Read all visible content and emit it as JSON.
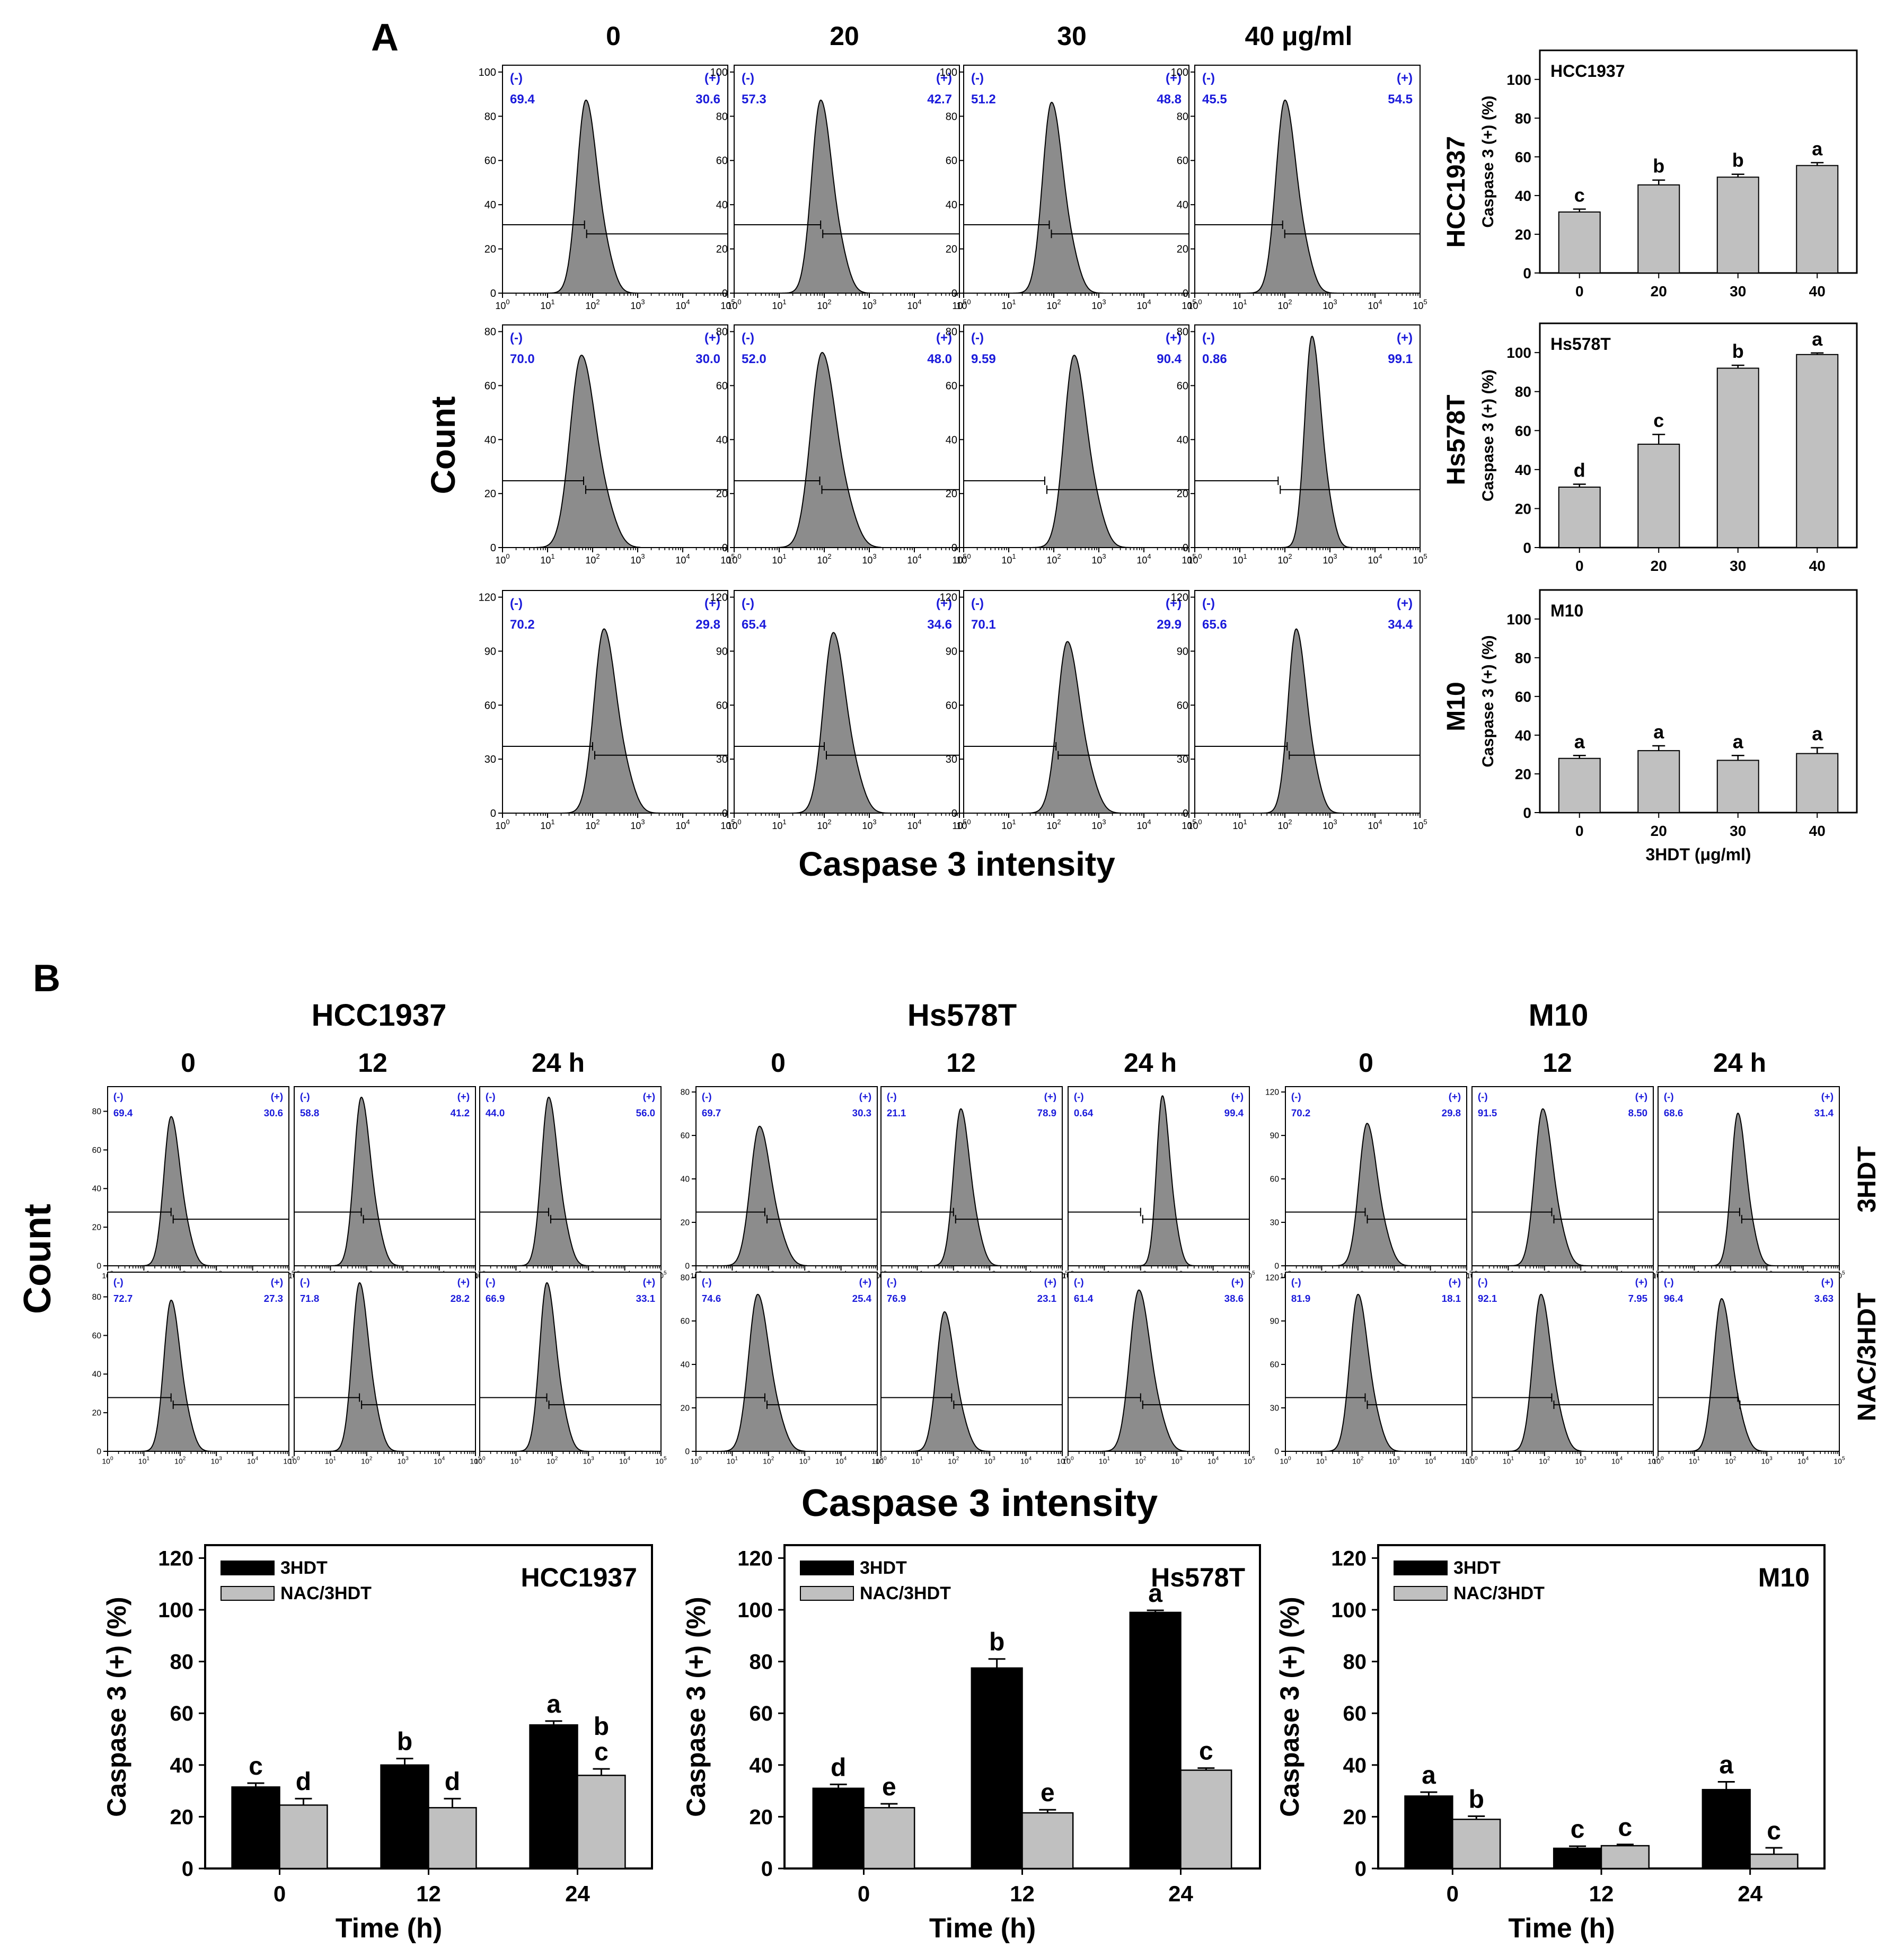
{
  "panel_labels": {
    "a": "A",
    "b": "B"
  },
  "panel_a": {
    "dose_headers": [
      "0",
      "20",
      "30",
      "40 μg/ml"
    ],
    "row_labels": [
      "HCC1937",
      "Hs578T",
      "M10"
    ],
    "y_axis_label": "Count",
    "x_axis_label": "Caspase 3 intensity"
  },
  "panel_b": {
    "cell_titles": [
      "HCC1937",
      "Hs578T",
      "M10"
    ],
    "time_headers": [
      "0",
      "12",
      "24 h"
    ],
    "row_labels": [
      "3HDT",
      "NAC/3HDT"
    ],
    "y_axis_label": "Count",
    "x_axis_label": "Caspase 3 intensity"
  },
  "histogram_gate_labels": {
    "neg": "(-)",
    "pos": "(+)"
  },
  "histogram_x_ticks": [
    "10",
    "10",
    "10",
    "10",
    "10",
    "10"
  ],
  "histogram_x_exps": [
    "0",
    "1",
    "2",
    "3",
    "4",
    "5"
  ],
  "colors": {
    "gate_text": "#1a1adb",
    "hist_fill": "#8c8c8c",
    "bar_black": "#000000",
    "bar_gray": "#c0c0c0"
  },
  "chart_data": [
    {
      "type": "histogram",
      "panel": "A",
      "description_of_axes": "Count vs Caspase 3 intensity (log scale 10^0-10^5)",
      "rows": [
        {
          "cell_line": "HCC1937",
          "y_ticks": [
            "0",
            "20",
            "40",
            "60",
            "80",
            "100"
          ],
          "ymax": 100,
          "histograms": [
            {
              "dose": "0",
              "neg": "69.4",
              "pos": "30.6",
              "peak_log": 1.85,
              "peak_count": 87,
              "width": 0.2
            },
            {
              "dose": "20",
              "neg": "57.3",
              "pos": "42.7",
              "peak_log": 1.92,
              "peak_count": 87,
              "width": 0.2
            },
            {
              "dose": "30",
              "neg": "51.2",
              "pos": "48.8",
              "peak_log": 1.95,
              "peak_count": 86,
              "width": 0.2
            },
            {
              "dose": "40",
              "neg": "45.5",
              "pos": "54.5",
              "peak_log": 2.0,
              "peak_count": 87,
              "width": 0.2
            }
          ]
        },
        {
          "cell_line": "Hs578T",
          "y_ticks": [
            "0",
            "20",
            "40",
            "60",
            "80"
          ],
          "ymax": 80,
          "histograms": [
            {
              "dose": "0",
              "neg": "70.0",
              "pos": "30.0",
              "peak_log": 1.75,
              "peak_count": 71,
              "width": 0.25
            },
            {
              "dose": "20",
              "neg": "52.0",
              "pos": "48.0",
              "peak_log": 1.95,
              "peak_count": 72,
              "width": 0.25
            },
            {
              "dose": "30",
              "neg": "9.59",
              "pos": "90.4",
              "peak_log": 2.45,
              "peak_count": 71,
              "width": 0.22
            },
            {
              "dose": "40",
              "neg": "0.86",
              "pos": "99.1",
              "peak_log": 2.6,
              "peak_count": 78,
              "width": 0.16
            }
          ]
        },
        {
          "cell_line": "M10",
          "y_ticks": [
            "0",
            "30",
            "60",
            "90",
            "120"
          ],
          "ymax": 120,
          "histograms": [
            {
              "dose": "0",
              "neg": "70.2",
              "pos": "29.8",
              "peak_log": 2.25,
              "peak_count": 102,
              "width": 0.22
            },
            {
              "dose": "20",
              "neg": "65.4",
              "pos": "34.6",
              "peak_log": 2.2,
              "peak_count": 100,
              "width": 0.22
            },
            {
              "dose": "30",
              "neg": "70.1",
              "pos": "29.9",
              "peak_log": 2.3,
              "peak_count": 95,
              "width": 0.22
            },
            {
              "dose": "40",
              "neg": "65.6",
              "pos": "34.4",
              "peak_log": 2.25,
              "peak_count": 102,
              "width": 0.18
            }
          ]
        }
      ]
    },
    {
      "type": "bar",
      "panel": "A",
      "ylabel": "Caspase 3 (+) (%)",
      "xlabel": "3HDT (μg/ml)",
      "categories": [
        "0",
        "20",
        "30",
        "40"
      ],
      "y_ticks": [
        "0",
        "20",
        "40",
        "60",
        "80",
        "100"
      ],
      "ylim": [
        0,
        115
      ],
      "charts": [
        {
          "title": "HCC1937",
          "values": [
            31.5,
            45.5,
            49.5,
            55.5
          ],
          "errors": [
            1.5,
            2.5,
            1.5,
            1.5
          ],
          "letters": [
            "c",
            "b",
            "b",
            "a"
          ]
        },
        {
          "title": "Hs578T",
          "values": [
            31,
            53,
            92,
            99
          ],
          "errors": [
            1.5,
            5,
            1.5,
            0.8
          ],
          "letters": [
            "d",
            "c",
            "b",
            "a"
          ]
        },
        {
          "title": "M10",
          "values": [
            28,
            32,
            27,
            30.5
          ],
          "errors": [
            1.5,
            2.5,
            2.5,
            3
          ],
          "letters": [
            "a",
            "a",
            "a",
            "a"
          ]
        }
      ]
    },
    {
      "type": "histogram",
      "panel": "B",
      "description_of_axes": "Count vs Caspase 3 intensity (log scale 10^0-10^5)",
      "cell_lines": [
        {
          "title": "HCC1937",
          "y_ticks": [
            "0",
            "20",
            "40",
            "60",
            "80"
          ],
          "ymax": 90,
          "rows": [
            [
              {
                "time": "0",
                "neg": "69.4",
                "pos": "30.6",
                "peak_log": 1.75,
                "peak_count": 77,
                "width": 0.2
              },
              {
                "time": "12",
                "neg": "58.8",
                "pos": "41.2",
                "peak_log": 1.85,
                "peak_count": 87,
                "width": 0.2
              },
              {
                "time": "24",
                "neg": "44.0",
                "pos": "56.0",
                "peak_log": 1.9,
                "peak_count": 87,
                "width": 0.2
              }
            ],
            [
              {
                "time": "0",
                "neg": "72.7",
                "pos": "27.3",
                "peak_log": 1.75,
                "peak_count": 78,
                "width": 0.2
              },
              {
                "time": "12",
                "neg": "71.8",
                "pos": "28.2",
                "peak_log": 1.8,
                "peak_count": 87,
                "width": 0.2
              },
              {
                "time": "24",
                "neg": "66.9",
                "pos": "33.1",
                "peak_log": 1.85,
                "peak_count": 87,
                "width": 0.2
              }
            ]
          ]
        },
        {
          "title": "Hs578T",
          "y_ticks": [
            "0",
            "20",
            "40",
            "60",
            "80"
          ],
          "ymax": 80,
          "rows": [
            [
              {
                "time": "0",
                "neg": "69.7",
                "pos": "30.3",
                "peak_log": 1.75,
                "peak_count": 64,
                "width": 0.25
              },
              {
                "time": "12",
                "neg": "21.1",
                "pos": "78.9",
                "peak_log": 2.2,
                "peak_count": 72,
                "width": 0.2
              },
              {
                "time": "24",
                "neg": "0.64",
                "pos": "99.4",
                "peak_log": 2.6,
                "peak_count": 78,
                "width": 0.16
              }
            ],
            [
              {
                "time": "0",
                "neg": "74.6",
                "pos": "25.4",
                "peak_log": 1.7,
                "peak_count": 72,
                "width": 0.25
              },
              {
                "time": "12",
                "neg": "76.9",
                "pos": "23.1",
                "peak_log": 1.75,
                "peak_count": 64,
                "width": 0.22
              },
              {
                "time": "24",
                "neg": "61.4",
                "pos": "38.6",
                "peak_log": 1.95,
                "peak_count": 74,
                "width": 0.25
              }
            ]
          ]
        },
        {
          "title": "M10",
          "y_ticks": [
            "0",
            "30",
            "60",
            "90",
            "120"
          ],
          "ymax": 120,
          "rows": [
            [
              {
                "time": "0",
                "neg": "70.2",
                "pos": "29.8",
                "peak_log": 2.25,
                "peak_count": 98,
                "width": 0.22
              },
              {
                "time": "12",
                "neg": "91.5",
                "pos": "8.50",
                "peak_log": 1.95,
                "peak_count": 108,
                "width": 0.22
              },
              {
                "time": "24",
                "neg": "68.6",
                "pos": "31.4",
                "peak_log": 2.2,
                "peak_count": 105,
                "width": 0.18
              }
            ],
            [
              {
                "time": "0",
                "neg": "81.9",
                "pos": "18.1",
                "peak_log": 2.0,
                "peak_count": 108,
                "width": 0.22
              },
              {
                "time": "12",
                "neg": "92.1",
                "pos": "7.95",
                "peak_log": 1.9,
                "peak_count": 108,
                "width": 0.22
              },
              {
                "time": "24",
                "neg": "96.4",
                "pos": "3.63",
                "peak_log": 1.75,
                "peak_count": 105,
                "width": 0.22
              }
            ]
          ]
        }
      ]
    },
    {
      "type": "bar",
      "panel": "B",
      "ylabel": "Caspase 3 (+) (%)",
      "xlabel": "Time (h)",
      "categories": [
        "0",
        "12",
        "24"
      ],
      "y_ticks": [
        "0",
        "20",
        "40",
        "60",
        "80",
        "100",
        "120"
      ],
      "ylim": [
        0,
        125
      ],
      "legend": [
        "3HDT",
        "NAC/3HDT"
      ],
      "charts": [
        {
          "title": "HCC1937",
          "series": [
            {
              "name": "3HDT",
              "values": [
                31.5,
                40,
                55.5
              ],
              "errors": [
                1.5,
                2.5,
                1.5
              ],
              "letters": [
                "c",
                "b",
                "a"
              ]
            },
            {
              "name": "NAC/3HDT",
              "values": [
                24.5,
                23.5,
                36
              ],
              "errors": [
                2.5,
                3.5,
                2.5
              ],
              "letters": [
                "d",
                "d",
                [
                  "b",
                  "c"
                ]
              ]
            }
          ]
        },
        {
          "title": "Hs578T",
          "series": [
            {
              "name": "3HDT",
              "values": [
                31,
                77.5,
                99
              ],
              "errors": [
                1.5,
                3.5,
                0.8
              ],
              "letters": [
                "d",
                "b",
                "a"
              ]
            },
            {
              "name": "NAC/3HDT",
              "values": [
                23.5,
                21.5,
                38
              ],
              "errors": [
                1.5,
                1.2,
                0.8
              ],
              "letters": [
                "e",
                "e",
                "c"
              ]
            }
          ]
        },
        {
          "title": "M10",
          "series": [
            {
              "name": "3HDT",
              "values": [
                28,
                7.8,
                30.5
              ],
              "errors": [
                1.5,
                0.8,
                3
              ],
              "letters": [
                "a",
                "c",
                "a"
              ]
            },
            {
              "name": "NAC/3HDT",
              "values": [
                19,
                8.8,
                5.5
              ],
              "errors": [
                1.2,
                0.5,
                2.5
              ],
              "letters": [
                "b",
                "c",
                "c"
              ]
            }
          ]
        }
      ]
    }
  ]
}
